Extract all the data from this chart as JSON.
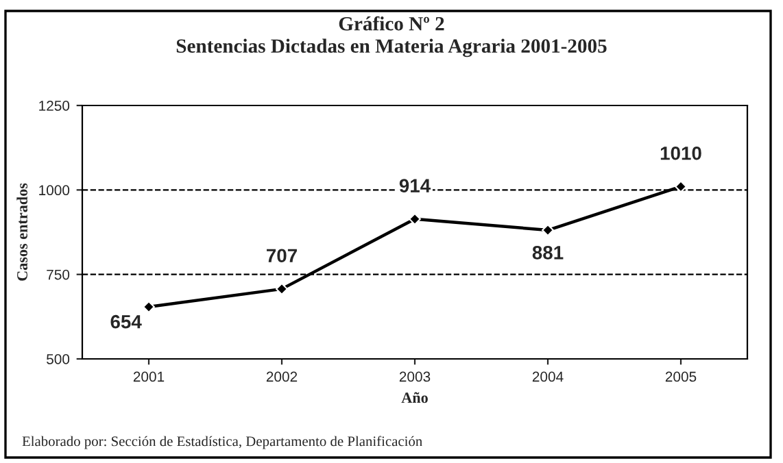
{
  "chart_data": {
    "type": "line",
    "title": "Gráfico Nº 2\nSentencias Dictadas en Materia Agraria 2001-2005",
    "xlabel": "Año",
    "ylabel": "Casos entrados",
    "categories": [
      "2001",
      "2002",
      "2003",
      "2004",
      "2005"
    ],
    "series": [
      {
        "color": "#000000",
        "values": [
          654,
          707,
          914,
          881,
          1010
        ]
      }
    ],
    "ylim": [
      500,
      1250
    ],
    "yticks": [
      500,
      750,
      1000,
      1250
    ],
    "grid": "y",
    "marker": "diamond",
    "line_style": "solid",
    "data_labels": true,
    "annotations": [
      "Elaborado por: Sección de Estadística, Departamento de Planificación"
    ]
  }
}
